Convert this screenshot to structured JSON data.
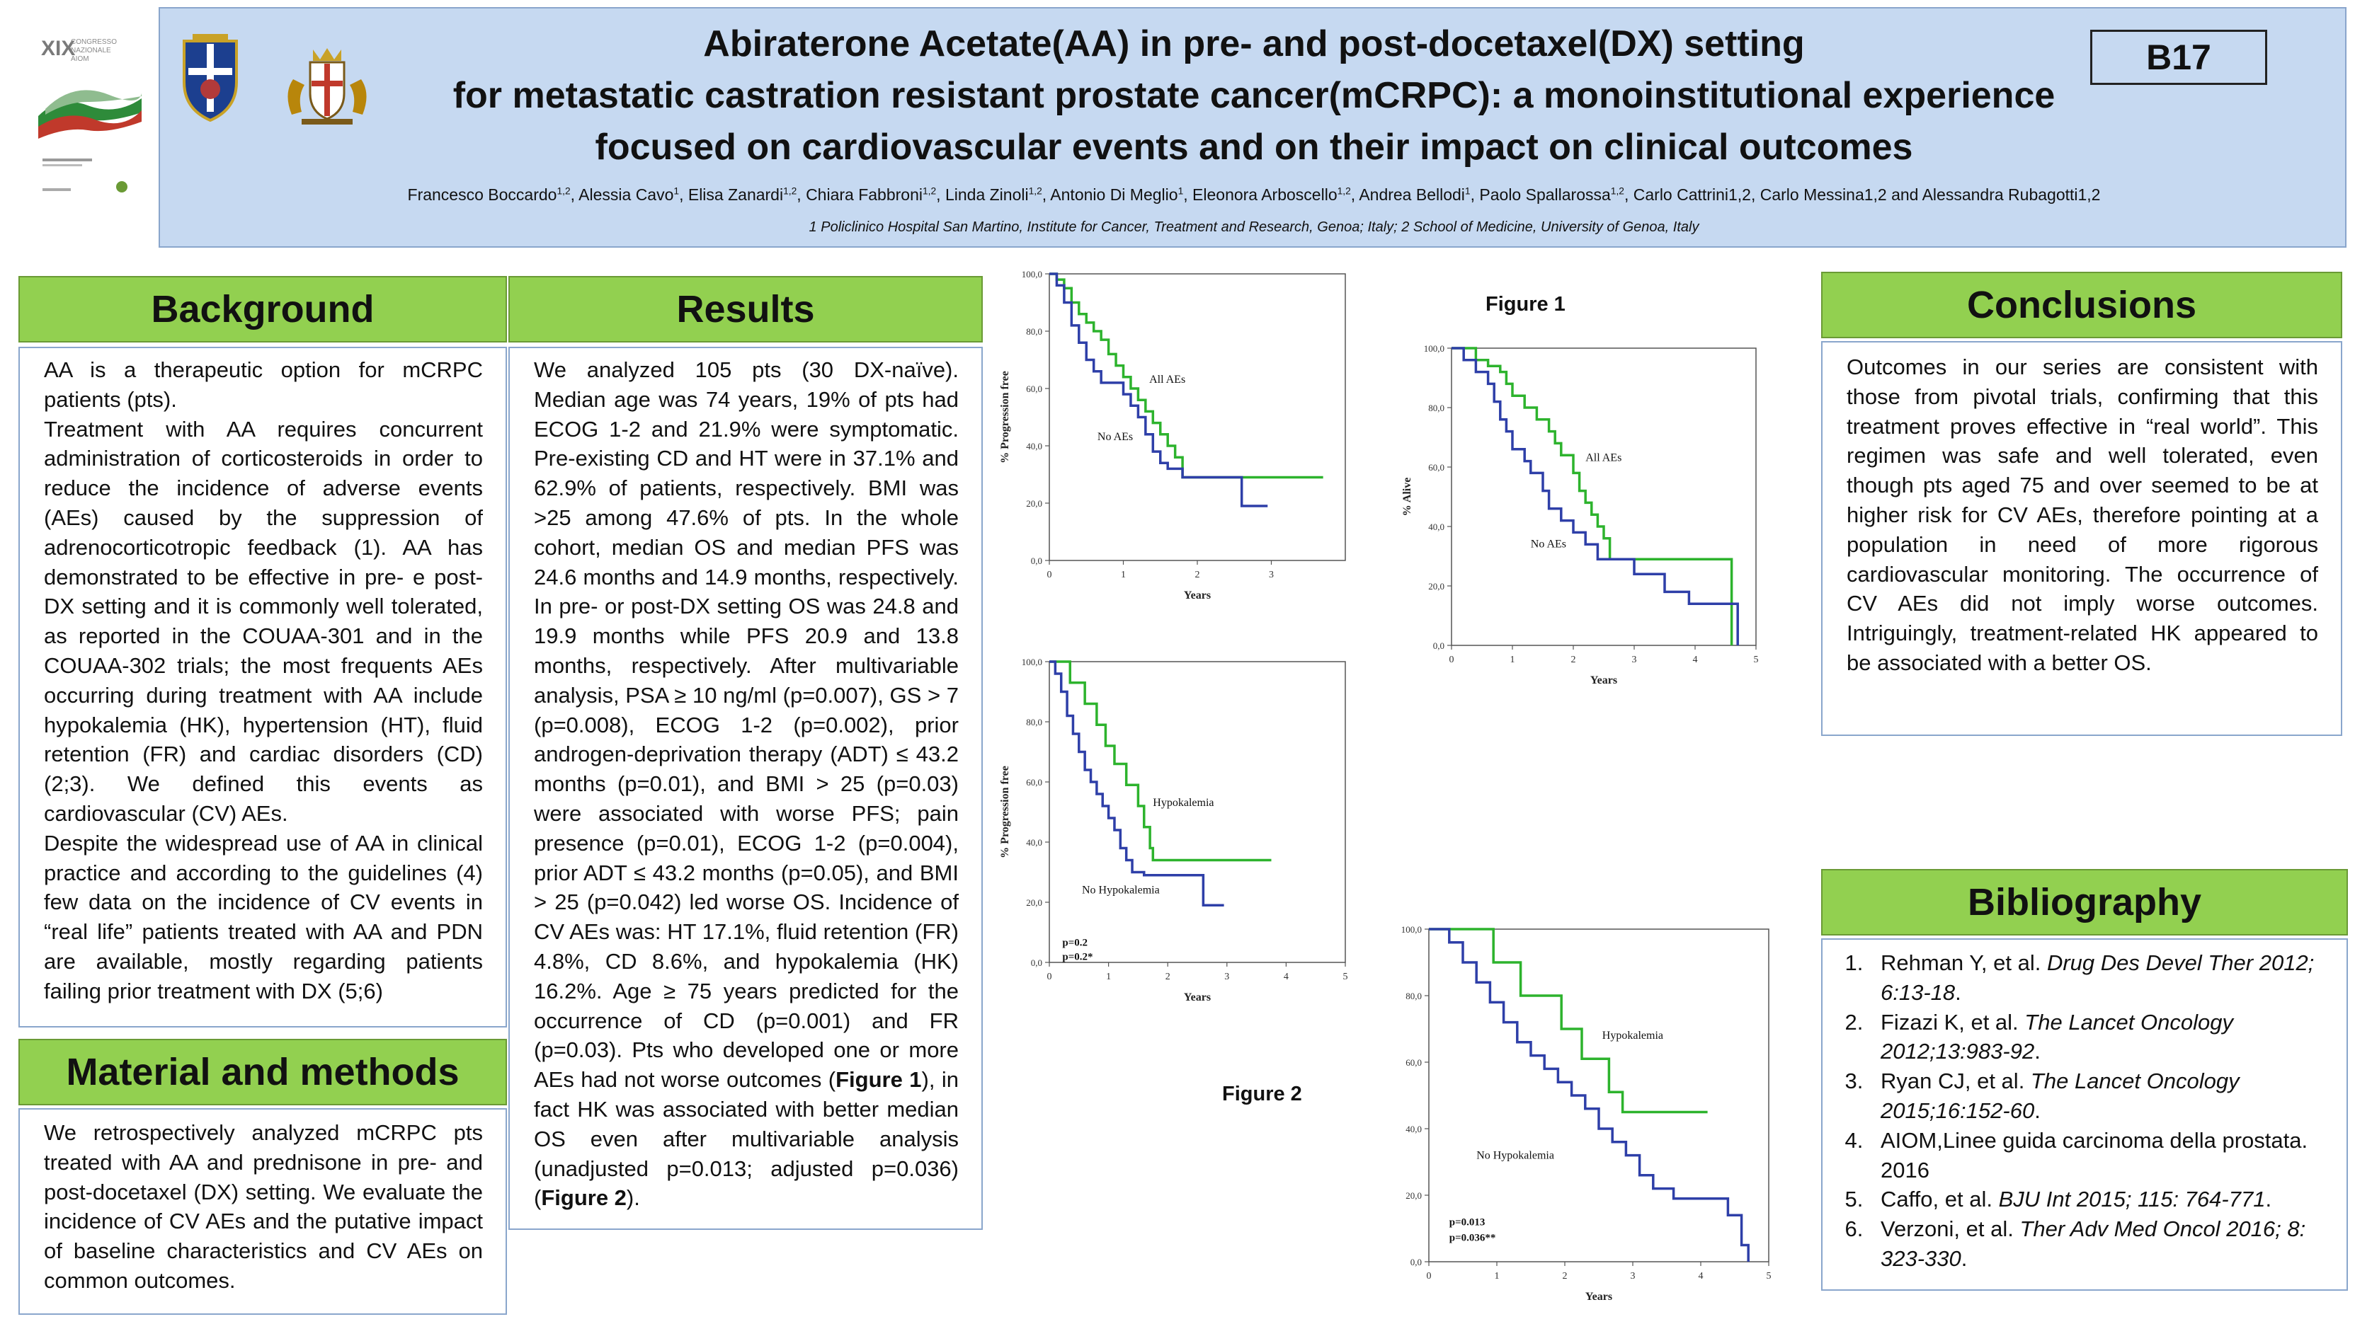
{
  "header": {
    "title_lines": [
      "Abiraterone Acetate(AA) in pre- and post-docetaxel(DX) setting",
      "for metastatic castration resistant prostate cancer(mCRPC): a monoinstitutional experience",
      "focused on cardiovascular events and on their impact on clinical outcomes"
    ],
    "code": "B17",
    "authors": [
      {
        "name": "Francesco Boccardo",
        "sup": "1,2"
      },
      {
        "name": "Alessia Cavo",
        "sup": "1"
      },
      {
        "name": "Elisa Zanardi",
        "sup": "1,2"
      },
      {
        "name": "Chiara Fabbroni",
        "sup": "1,2"
      },
      {
        "name": "Linda Zinoli",
        "sup": "1,2"
      },
      {
        "name": "Antonio Di Meglio",
        "sup": "1"
      },
      {
        "name": "Eleonora Arboscello",
        "sup": "1,2"
      },
      {
        "name": "Andrea Bellodi",
        "sup": "1"
      },
      {
        "name": "Paolo Spallarossa",
        "sup": "1,2"
      },
      {
        "name": "Carlo Cattrini1,2",
        "sup": ""
      },
      {
        "name": "Carlo Messina1,2 and Alessandra Rubagotti1,2",
        "sup": ""
      }
    ],
    "affiliation": "1 Policlinico Hospital San Martino, Institute for Cancer, Treatment and Research, Genoa; Italy; 2  School of Medicine, University of Genoa, Italy",
    "congress_logo": {
      "line1": "XIX",
      "line2": "CONGRESSO",
      "line3": "NAZIONALE",
      "line4": "AIOM"
    }
  },
  "background": {
    "heading": "Background",
    "paragraphs": [
      "AA is a therapeutic option for mCRPC patients (pts).",
      "Treatment with AA requires concurrent administration of corticosteroids in order to reduce the incidence of adverse events (AEs) caused by the suppression of adrenocorticotropic feedback (1). AA has demonstrated to be effective in pre- e post-DX setting and it is commonly well tolerated, as reported in the COUAA-301 and in the COUAA-302 trials; the most frequents AEs occurring during treatment with AA include hypokalemia (HK), hypertension (HT), fluid retention (FR) and cardiac disorders (CD) (2;3). We defined this events as cardiovascular (CV) AEs.",
      "Despite the widespread use of AA in clinical practice and according to the guidelines (4) few data on the incidence of CV events in “real life” patients treated with AA and PDN are available, mostly regarding patients failing prior treatment with DX (5;6)"
    ]
  },
  "methods": {
    "heading": "Material and methods",
    "text": "We retrospectively analyzed mCRPC pts treated with AA and prednisone in pre- and post-docetaxel (DX) setting. We evaluate the incidence of CV AEs and the putative impact of baseline characteristics and CV AEs on common outcomes."
  },
  "results": {
    "heading": "Results",
    "text_before_fig1": "We analyzed 105 pts (30 DX-naïve). Median age was 74 years, 19% of pts had ECOG 1-2 and 21.9% were symptomatic. Pre-existing CD and HT were in 37.1% and 62.9% of patients, respectively. BMI was >25 among 47.6% of pts. In the whole cohort, median OS and median PFS was 24.6 months and 14.9 months, respectively. In pre- or post-DX setting OS was 24.8 and 19.9 months while PFS 20.9 and 13.8 months, respectively. After multivariable analysis, PSA ≥ 10 ng/ml (p=0.007), GS > 7 (p=0.008), ECOG 1-2 (p=0.002), prior androgen-deprivation therapy (ADT) ≤ 43.2 months (p=0.01), and BMI > 25 (p=0.03) were associated with worse PFS; pain presence (p=0.01), ECOG 1-2 (p=0.004), prior ADT ≤ 43.2 months (p=0.05), and BMI > 25 (p=0.042) led worse OS. Incidence of CV AEs was: HT 17.1%, fluid retention (FR) 4.8%, CD 8.6%, and hypokalemia (HK) 16.2%. Age ≥ 75 years predicted for the occurrence of CD (p=0.001) and FR (p=0.03).  Pts who developed one or more AEs had not worse outcomes (",
    "fig1_ref": "Figure 1",
    "text_between": "), in fact HK was associated with better median OS even after multivariable analysis (unadjusted p=0.013; adjusted p=0.036) (",
    "fig2_ref": "Figure 2",
    "text_after": ")."
  },
  "figures": {
    "figure1_label": "Figure 1",
    "figure2_label": "Figure 2"
  },
  "conclusions": {
    "heading": "Conclusions",
    "text": "Outcomes in our series are consistent with those from pivotal trials, confirming that this treatment proves effective in “real world”. This regimen was safe and well tolerated, even though pts aged 75 and over seemed to be at higher risk for CV AEs, therefore pointing at a population in need of more rigorous cardiovascular monitoring. The occurrence of  CV AEs did not imply worse outcomes. Intriguingly, treatment-related HK appeared to be associated with a better OS."
  },
  "bibliography": {
    "heading": "Bibliography",
    "items": [
      {
        "author": "Rehman Y, et al. ",
        "source": "Drug Des Devel Ther 2012; 6:13-18",
        "tail": "."
      },
      {
        "author": "Fizazi K, et al. ",
        "source": "The Lancet Oncology 2012;13:983-92",
        "tail": "."
      },
      {
        "author": "Ryan CJ, et al. ",
        "source": "The Lancet Oncology 2015;16:152-60",
        "tail": "."
      },
      {
        "author": "AIOM,Linee guida carcinoma della prostata. 2016",
        "source": "",
        "tail": ""
      },
      {
        "author": "Caffo, et al. ",
        "source": "BJU Int 2015; 115: 764-771",
        "tail": "."
      },
      {
        "author": "Verzoni, et al. ",
        "source": "Ther Adv Med Oncol 2016; 8: 323-330",
        "tail": "."
      }
    ]
  },
  "chart_data": [
    {
      "id": "pfs-aes",
      "type": "line",
      "title": "",
      "ylabel": "% Progression free",
      "xlabel": "Years",
      "xlim": [
        0,
        4
      ],
      "ylim": [
        0,
        100
      ],
      "xticks": [
        "0",
        "1",
        "2",
        "3"
      ],
      "yticks": [
        "0,0",
        "20,0",
        "40,0",
        "60,0",
        "80,0",
        "100,0"
      ],
      "series": [
        {
          "name": "All AEs",
          "color": "#2db32d",
          "points": [
            [
              0,
              100
            ],
            [
              0.1,
              98
            ],
            [
              0.2,
              95
            ],
            [
              0.3,
              90
            ],
            [
              0.4,
              86
            ],
            [
              0.5,
              83
            ],
            [
              0.6,
              80
            ],
            [
              0.7,
              77
            ],
            [
              0.8,
              72
            ],
            [
              0.9,
              68
            ],
            [
              1.0,
              64
            ],
            [
              1.1,
              60
            ],
            [
              1.2,
              56
            ],
            [
              1.3,
              52
            ],
            [
              1.4,
              48
            ],
            [
              1.5,
              44
            ],
            [
              1.6,
              40
            ],
            [
              1.7,
              36
            ],
            [
              1.8,
              29
            ],
            [
              2.2,
              29
            ],
            [
              2.7,
              29
            ],
            [
              3.1,
              29
            ],
            [
              3.7,
              29
            ]
          ]
        },
        {
          "name": "No AEs",
          "color": "#2e3fa8",
          "points": [
            [
              0,
              100
            ],
            [
              0.1,
              96
            ],
            [
              0.2,
              90
            ],
            [
              0.3,
              82
            ],
            [
              0.4,
              76
            ],
            [
              0.5,
              70
            ],
            [
              0.6,
              66
            ],
            [
              0.7,
              62
            ],
            [
              0.9,
              62
            ],
            [
              1.0,
              58
            ],
            [
              1.1,
              54
            ],
            [
              1.2,
              50
            ],
            [
              1.3,
              44
            ],
            [
              1.4,
              38
            ],
            [
              1.5,
              34
            ],
            [
              1.6,
              32
            ],
            [
              1.8,
              29
            ],
            [
              2.3,
              29
            ],
            [
              2.6,
              29
            ],
            [
              2.6,
              19
            ],
            [
              2.95,
              19
            ]
          ]
        }
      ],
      "annotations": []
    },
    {
      "id": "os-aes",
      "type": "line",
      "title": "",
      "ylabel": "% Alive",
      "xlabel": "Years",
      "xlim": [
        0,
        5
      ],
      "ylim": [
        0,
        100
      ],
      "xticks": [
        "0",
        "1",
        "2",
        "3",
        "4",
        "5"
      ],
      "yticks": [
        "0,0",
        "20,0",
        "40,0",
        "60,0",
        "80,0",
        "100,0"
      ],
      "series": [
        {
          "name": "All AEs",
          "color": "#2db32d",
          "points": [
            [
              0,
              100
            ],
            [
              0.3,
              100
            ],
            [
              0.4,
              96
            ],
            [
              0.6,
              94
            ],
            [
              0.8,
              92
            ],
            [
              0.9,
              88
            ],
            [
              1.0,
              84
            ],
            [
              1.2,
              80
            ],
            [
              1.4,
              76
            ],
            [
              1.6,
              72
            ],
            [
              1.7,
              68
            ],
            [
              1.8,
              64
            ],
            [
              2.0,
              58
            ],
            [
              2.1,
              52
            ],
            [
              2.2,
              48
            ],
            [
              2.3,
              44
            ],
            [
              2.4,
              40
            ],
            [
              2.5,
              36
            ],
            [
              2.6,
              29
            ],
            [
              3.0,
              29
            ],
            [
              3.5,
              29
            ],
            [
              4.6,
              29
            ],
            [
              4.6,
              0
            ]
          ]
        },
        {
          "name": "No AEs",
          "color": "#2e3fa8",
          "points": [
            [
              0,
              100
            ],
            [
              0.2,
              96
            ],
            [
              0.4,
              92
            ],
            [
              0.6,
              88
            ],
            [
              0.7,
              82
            ],
            [
              0.8,
              76
            ],
            [
              0.9,
              72
            ],
            [
              1.0,
              66
            ],
            [
              1.2,
              62
            ],
            [
              1.3,
              58
            ],
            [
              1.5,
              52
            ],
            [
              1.6,
              46
            ],
            [
              1.8,
              42
            ],
            [
              2.0,
              38
            ],
            [
              2.2,
              34
            ],
            [
              2.4,
              29
            ],
            [
              2.8,
              29
            ],
            [
              3.0,
              24
            ],
            [
              3.5,
              18
            ],
            [
              3.9,
              14
            ],
            [
              4.7,
              14
            ],
            [
              4.7,
              0
            ]
          ]
        }
      ],
      "annotations": []
    },
    {
      "id": "pfs-hk",
      "type": "line",
      "title": "",
      "ylabel": "% Progression free",
      "xlabel": "Years",
      "xlim": [
        0,
        5
      ],
      "ylim": [
        0,
        100
      ],
      "xticks": [
        "0",
        "1",
        "2",
        "3",
        "4",
        "5"
      ],
      "yticks": [
        "0,0",
        "20,0",
        "40,0",
        "60,0",
        "80,0",
        "100,0"
      ],
      "series": [
        {
          "name": "Hypokalemia",
          "color": "#2db32d",
          "points": [
            [
              0,
              100
            ],
            [
              0.3,
              100
            ],
            [
              0.35,
              93
            ],
            [
              0.6,
              86
            ],
            [
              0.8,
              79
            ],
            [
              0.95,
              72
            ],
            [
              1.1,
              66
            ],
            [
              1.3,
              59
            ],
            [
              1.5,
              52
            ],
            [
              1.6,
              45
            ],
            [
              1.7,
              38
            ],
            [
              1.75,
              34
            ],
            [
              2.5,
              34
            ],
            [
              3.1,
              34
            ],
            [
              3.75,
              34
            ]
          ]
        },
        {
          "name": "No Hypokalemia",
          "color": "#2e3fa8",
          "points": [
            [
              0,
              100
            ],
            [
              0.1,
              96
            ],
            [
              0.2,
              90
            ],
            [
              0.3,
              82
            ],
            [
              0.4,
              76
            ],
            [
              0.5,
              70
            ],
            [
              0.6,
              64
            ],
            [
              0.7,
              60
            ],
            [
              0.8,
              56
            ],
            [
              0.9,
              52
            ],
            [
              1.0,
              48
            ],
            [
              1.1,
              44
            ],
            [
              1.2,
              38
            ],
            [
              1.3,
              34
            ],
            [
              1.4,
              30
            ],
            [
              1.6,
              29
            ],
            [
              2.0,
              29
            ],
            [
              2.3,
              29
            ],
            [
              2.6,
              29
            ],
            [
              2.6,
              19
            ],
            [
              2.95,
              19
            ]
          ]
        }
      ],
      "annotations": [
        "p=0.2",
        "p=0.2*"
      ]
    },
    {
      "id": "os-hk",
      "type": "line",
      "title": "",
      "ylabel": "% Alive",
      "xlabel": "Years",
      "xlim": [
        0,
        5
      ],
      "ylim": [
        0,
        100
      ],
      "xticks": [
        "0",
        "1",
        "2",
        "3",
        "4",
        "5"
      ],
      "yticks": [
        "0,0",
        "20,0",
        "40,0",
        "60,0",
        "80,0",
        "100,0"
      ],
      "series": [
        {
          "name": "Hypokalemia",
          "color": "#2db32d",
          "points": [
            [
              0,
              100
            ],
            [
              0.9,
              100
            ],
            [
              0.95,
              90
            ],
            [
              1.3,
              90
            ],
            [
              1.35,
              80
            ],
            [
              1.9,
              80
            ],
            [
              1.95,
              70
            ],
            [
              2.2,
              70
            ],
            [
              2.25,
              61
            ],
            [
              2.6,
              61
            ],
            [
              2.65,
              51
            ],
            [
              2.8,
              51
            ],
            [
              2.85,
              45
            ],
            [
              3.5,
              45
            ],
            [
              4.1,
              45
            ]
          ]
        },
        {
          "name": "No Hypokalemia",
          "color": "#2e3fa8",
          "points": [
            [
              0,
              100
            ],
            [
              0.3,
              96
            ],
            [
              0.5,
              90
            ],
            [
              0.7,
              84
            ],
            [
              0.9,
              78
            ],
            [
              1.1,
              72
            ],
            [
              1.3,
              66
            ],
            [
              1.5,
              62
            ],
            [
              1.7,
              58
            ],
            [
              1.9,
              54
            ],
            [
              2.1,
              50
            ],
            [
              2.3,
              46
            ],
            [
              2.5,
              40
            ],
            [
              2.7,
              36
            ],
            [
              2.9,
              32
            ],
            [
              3.1,
              26
            ],
            [
              3.3,
              22
            ],
            [
              3.6,
              19
            ],
            [
              4.0,
              19
            ],
            [
              4.4,
              14
            ],
            [
              4.6,
              14
            ],
            [
              4.6,
              5
            ],
            [
              4.7,
              0
            ]
          ]
        }
      ],
      "annotations": [
        "p=0.013",
        "p=0.036**"
      ]
    }
  ]
}
